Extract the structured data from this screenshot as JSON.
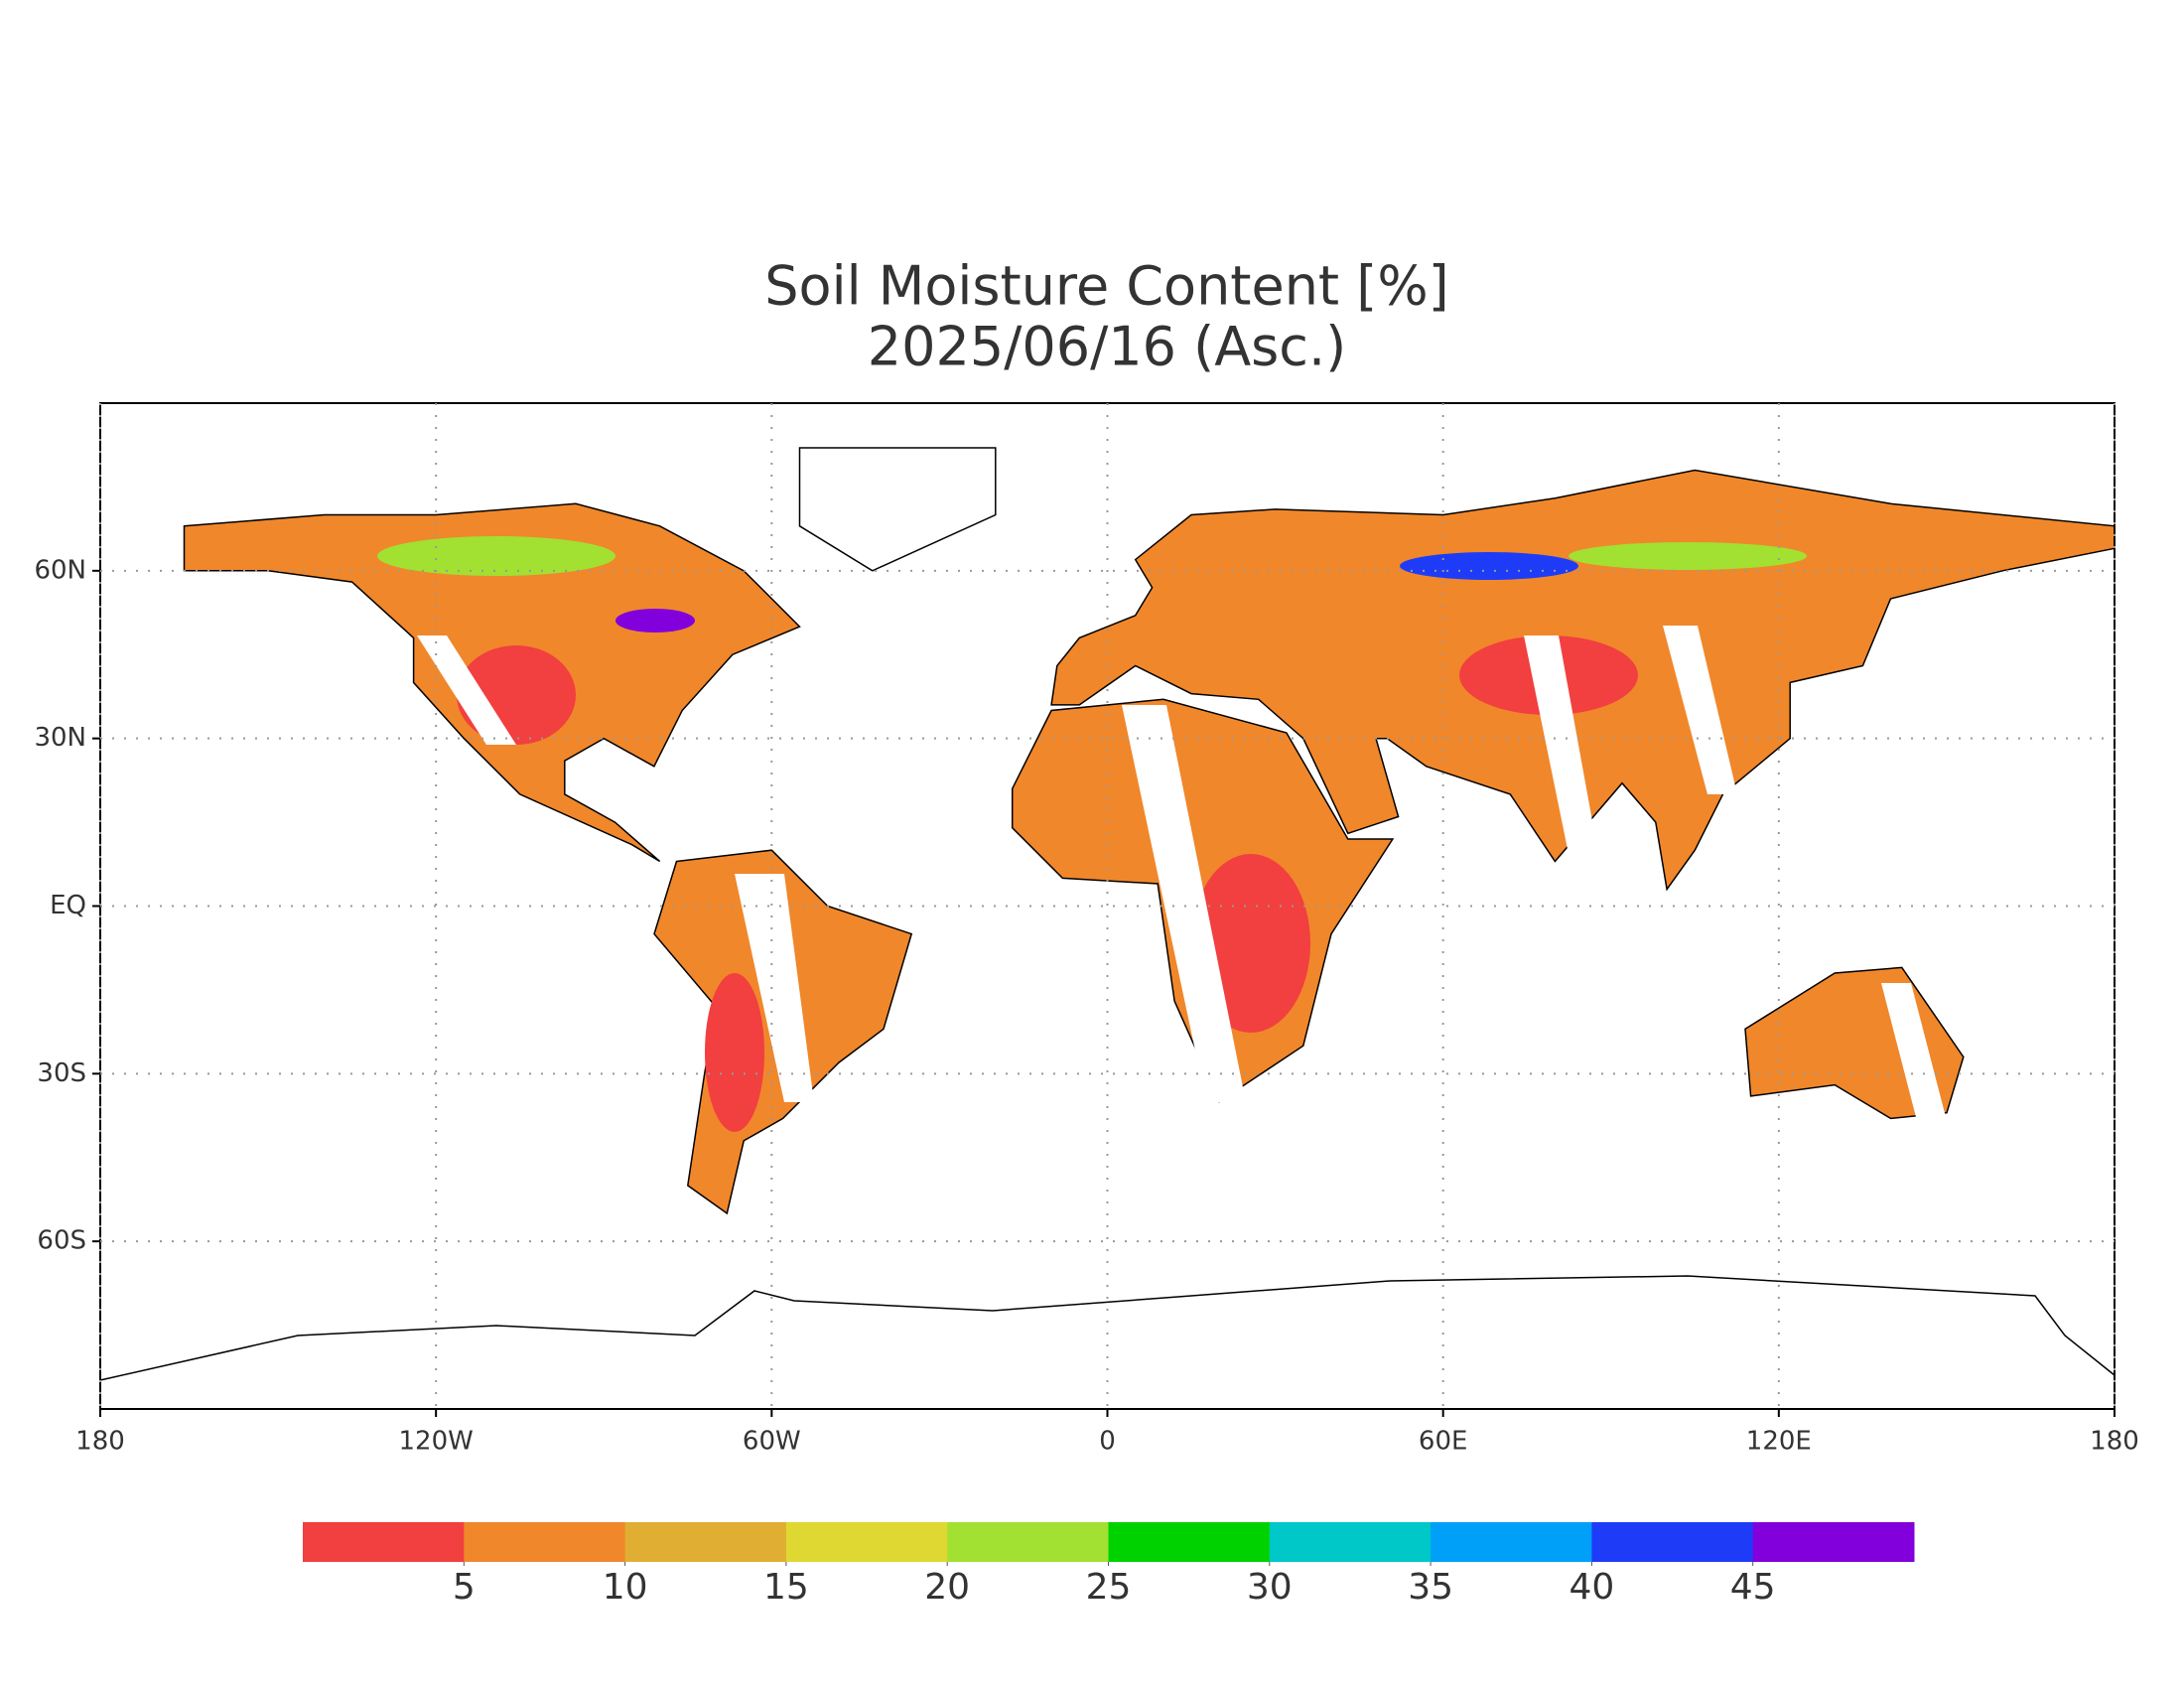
{
  "chart_data": {
    "type": "map",
    "title": "Soil Moisture Content [%]",
    "subtitle": "2025/06/16 (Asc.)",
    "xlim": [
      -180,
      180
    ],
    "ylim": [
      -90,
      90
    ],
    "xticks": [
      {
        "value": -180,
        "label": "180"
      },
      {
        "value": -120,
        "label": "120W"
      },
      {
        "value": -60,
        "label": "60W"
      },
      0,
      {
        "value": 60,
        "label": "60E"
      },
      {
        "value": 120,
        "label": "120E"
      },
      {
        "value": 180,
        "label": "180"
      }
    ],
    "yticks": [
      {
        "value": -60,
        "label": "60S"
      },
      {
        "value": -30,
        "label": "30S"
      },
      {
        "value": 0,
        "label": "EQ"
      },
      {
        "value": 30,
        "label": "30N"
      },
      {
        "value": 60,
        "label": "60N"
      }
    ],
    "grid": true,
    "colorbar": {
      "colors": [
        "#f23f3f",
        "#f0872b",
        "#e0ae32",
        "#e0d832",
        "#a2e032",
        "#00d200",
        "#00c8c8",
        "#00a0f8",
        "#1e3cf8",
        "#8200dc"
      ],
      "lim": [
        0,
        50
      ],
      "ticks": [
        5,
        10,
        15,
        20,
        25,
        30,
        35,
        40,
        45
      ]
    }
  }
}
